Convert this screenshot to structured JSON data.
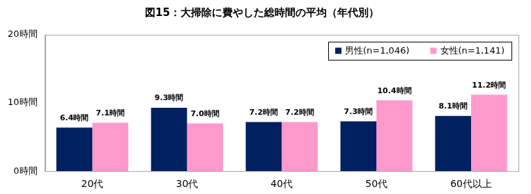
{
  "chart_data": {
    "type": "bar",
    "title": "図15：大掃除に費やした総時間の平均（年代別）",
    "categories": [
      "20代",
      "30代",
      "40代",
      "50代",
      "60代以上"
    ],
    "series": [
      {
        "name": "男性(n=1,046)",
        "color": "#002060",
        "values": [
          6.4,
          9.3,
          7.2,
          7.3,
          8.1
        ],
        "value_labels": [
          "6.4時間",
          "9.3時間",
          "7.2時間",
          "7.3時間",
          "8.1時間"
        ]
      },
      {
        "name": "女性(n=1,141)",
        "color": "#ff99cc",
        "values": [
          7.1,
          7.0,
          7.2,
          10.4,
          11.2
        ],
        "value_labels": [
          "7.1時間",
          "7.0時間",
          "7.2時間",
          "10.4時間",
          "11.2時間"
        ]
      }
    ],
    "ylim": [
      0,
      20
    ],
    "yticks": [
      {
        "value": 0,
        "label": "0時間"
      },
      {
        "value": 10,
        "label": "10時間"
      },
      {
        "value": 20,
        "label": "20時間"
      }
    ],
    "grid": false,
    "legend": "upper right",
    "data_labels": true
  }
}
